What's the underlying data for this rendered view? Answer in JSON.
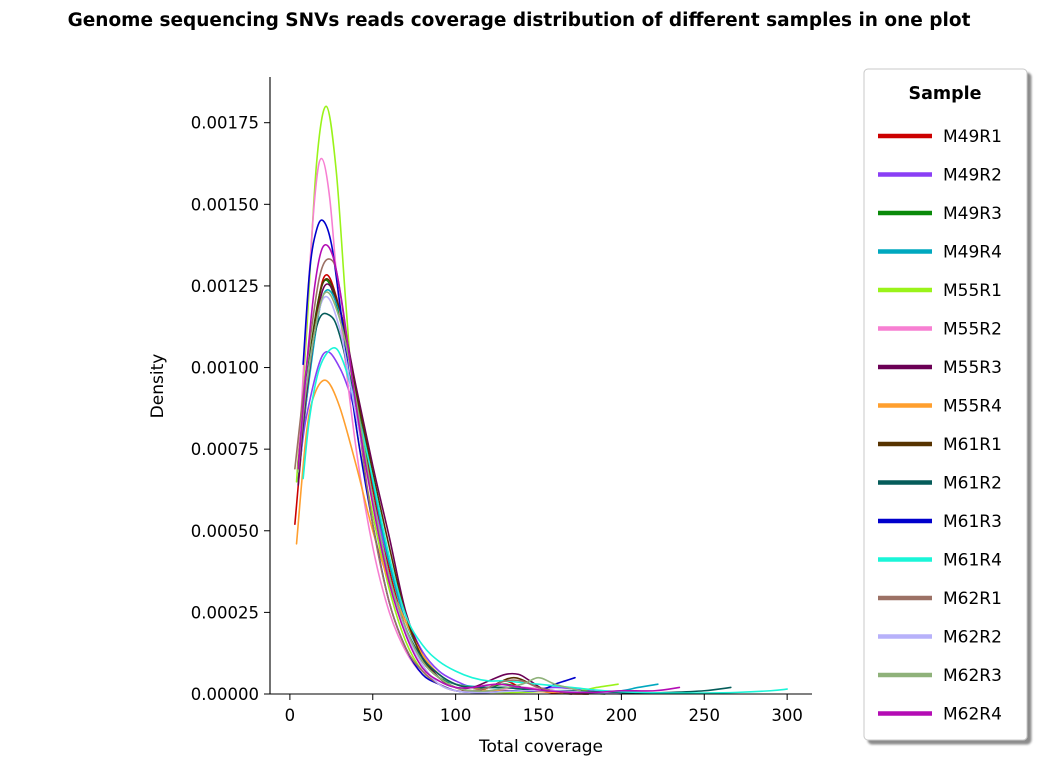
{
  "chart_data": {
    "type": "line",
    "title": "Genome sequencing SNVs reads coverage distribution of different samples in one plot",
    "xlabel": "Total coverage",
    "ylabel": "Density",
    "xlim": [
      -12,
      315
    ],
    "ylim": [
      0,
      0.00189
    ],
    "xticks": [
      0,
      50,
      100,
      150,
      200,
      250,
      300
    ],
    "yticks": [
      0.0,
      0.00025,
      0.0005,
      0.00075,
      0.001,
      0.00125,
      0.0015,
      0.00175
    ],
    "ytick_labels": [
      "0.00000",
      "0.00025",
      "0.00050",
      "0.00075",
      "0.00100",
      "0.00125",
      "0.00150",
      "0.00175"
    ],
    "grid": false,
    "legend": {
      "title": "Sample",
      "placement": "right-outside"
    },
    "series": [
      {
        "name": "M49R1",
        "color": "#cc0000",
        "x": [
          3,
          10,
          20,
          30,
          40,
          50,
          60,
          70,
          80,
          90,
          100,
          110,
          120,
          130,
          140,
          160,
          180
        ],
        "y": [
          0.00052,
          0.0009,
          0.00127,
          0.00118,
          0.00092,
          0.00063,
          0.00038,
          0.0002,
          0.0001,
          5e-05,
          2e-05,
          1e-05,
          2e-05,
          4e-05,
          2e-05,
          3e-06,
          0.0
        ]
      },
      {
        "name": "M49R2",
        "color": "#8a3ff5",
        "x": [
          5,
          10,
          20,
          30,
          40,
          50,
          60,
          70,
          80,
          90,
          100,
          110,
          120,
          140,
          160,
          180,
          200
        ],
        "y": [
          0.00066,
          0.00085,
          0.00104,
          0.001,
          0.00085,
          0.0006,
          0.0004,
          0.00024,
          0.00013,
          7e-05,
          4e-05,
          2e-05,
          1e-05,
          1e-05,
          2e-05,
          1e-05,
          0.0
        ]
      },
      {
        "name": "M49R3",
        "color": "#0a8a0a",
        "x": [
          5,
          10,
          20,
          30,
          40,
          50,
          60,
          70,
          80,
          90,
          100,
          110,
          120,
          130,
          150,
          170,
          190
        ],
        "y": [
          0.00068,
          0.00096,
          0.00126,
          0.00116,
          0.00092,
          0.0006,
          0.00036,
          0.00019,
          0.0001,
          5e-05,
          3e-05,
          2e-05,
          2e-05,
          3e-05,
          1e-05,
          5e-06,
          0.0
        ]
      },
      {
        "name": "M49R4",
        "color": "#00a8bf",
        "x": [
          5,
          10,
          20,
          30,
          40,
          50,
          60,
          70,
          80,
          90,
          100,
          120,
          140,
          160,
          180,
          200,
          210,
          222
        ],
        "y": [
          0.00065,
          0.0009,
          0.00122,
          0.00117,
          0.00093,
          0.00065,
          0.0004,
          0.00022,
          0.00012,
          6e-05,
          3e-05,
          2e-05,
          2e-05,
          1e-05,
          5e-06,
          1e-05,
          2e-05,
          3e-05
        ]
      },
      {
        "name": "M55R1",
        "color": "#9af31a",
        "x": [
          4,
          10,
          16,
          22,
          28,
          34,
          40,
          50,
          60,
          70,
          80,
          90,
          100,
          120,
          140,
          160,
          175,
          185,
          198
        ],
        "y": [
          0.00065,
          0.0011,
          0.00162,
          0.0018,
          0.0016,
          0.00118,
          0.00082,
          0.00055,
          0.00032,
          0.00016,
          7e-05,
          3e-05,
          1e-05,
          5e-06,
          5e-06,
          1e-05,
          1e-05,
          2e-05,
          3e-05
        ]
      },
      {
        "name": "M55R2",
        "color": "#f77fd2",
        "x": [
          5,
          10,
          15,
          19,
          24,
          30,
          40,
          50,
          60,
          70,
          80,
          90,
          100,
          120,
          140,
          160,
          180
        ],
        "y": [
          0.0007,
          0.00115,
          0.00152,
          0.00164,
          0.00152,
          0.00118,
          0.00075,
          0.00045,
          0.00025,
          0.00013,
          6e-05,
          3e-05,
          1e-05,
          1e-05,
          2e-05,
          1e-05,
          0.0
        ]
      },
      {
        "name": "M55R3",
        "color": "#6b0055",
        "x": [
          5,
          10,
          20,
          30,
          40,
          50,
          60,
          70,
          80,
          90,
          100,
          110,
          120,
          130,
          138,
          145,
          155,
          170
        ],
        "y": [
          0.00064,
          0.00092,
          0.00124,
          0.00118,
          0.00094,
          0.0007,
          0.00048,
          0.00025,
          0.00012,
          5e-05,
          2e-05,
          2e-05,
          4e-05,
          6e-05,
          6e-05,
          4e-05,
          1e-05,
          0.0
        ]
      },
      {
        "name": "M55R4",
        "color": "#ff9f2e",
        "x": [
          4,
          10,
          15,
          22,
          30,
          40,
          50,
          60,
          70,
          80,
          90,
          100,
          110,
          120,
          140,
          160,
          180
        ],
        "y": [
          0.00046,
          0.0008,
          0.00092,
          0.00096,
          0.00088,
          0.0007,
          0.0005,
          0.00034,
          0.00022,
          0.00012,
          6e-05,
          3e-05,
          2e-05,
          1e-05,
          1e-05,
          5e-06,
          0.0
        ]
      },
      {
        "name": "M61R1",
        "color": "#573300",
        "x": [
          5,
          10,
          20,
          30,
          40,
          50,
          60,
          70,
          80,
          90,
          100,
          110,
          120,
          135,
          150,
          165,
          180
        ],
        "y": [
          0.0007,
          0.00095,
          0.00126,
          0.00118,
          0.00092,
          0.00068,
          0.00045,
          0.00024,
          0.00011,
          5e-05,
          2e-05,
          1e-05,
          2e-05,
          5e-05,
          2e-05,
          5e-06,
          0.0
        ]
      },
      {
        "name": "M61R2",
        "color": "#055c5a",
        "x": [
          5,
          10,
          17,
          24,
          30,
          40,
          50,
          60,
          70,
          80,
          90,
          100,
          110,
          130,
          150,
          170,
          190,
          210,
          230,
          250,
          266
        ],
        "y": [
          0.00068,
          0.00095,
          0.00114,
          0.00116,
          0.0011,
          0.00088,
          0.0006,
          0.00036,
          0.0002,
          0.00011,
          6e-05,
          3e-05,
          2e-05,
          2e-05,
          1e-05,
          1e-05,
          5e-06,
          3e-06,
          5e-06,
          1e-05,
          2e-05
        ]
      },
      {
        "name": "M61R3",
        "color": "#0000cc",
        "x": [
          8,
          12,
          16,
          20,
          25,
          30,
          40,
          50,
          60,
          70,
          80,
          90,
          100,
          110,
          120,
          135,
          150,
          160,
          166,
          172
        ],
        "y": [
          0.00101,
          0.0013,
          0.00142,
          0.00145,
          0.00138,
          0.0012,
          0.00082,
          0.00052,
          0.00028,
          0.00014,
          6e-05,
          3e-05,
          1e-05,
          5e-06,
          5e-06,
          1e-05,
          1e-05,
          3e-05,
          4e-05,
          5e-05
        ]
      },
      {
        "name": "M61R4",
        "color": "#1af5d8",
        "x": [
          8,
          12,
          18,
          26,
          32,
          40,
          50,
          60,
          70,
          80,
          90,
          100,
          110,
          120,
          130,
          150,
          170,
          190,
          210,
          230,
          250,
          270,
          290,
          300
        ],
        "y": [
          0.00066,
          0.00085,
          0.001,
          0.00106,
          0.00102,
          0.00088,
          0.00066,
          0.00042,
          0.00024,
          0.00015,
          0.0001,
          7e-05,
          5e-05,
          4e-05,
          4e-05,
          3e-05,
          2e-05,
          1e-05,
          5e-06,
          3e-06,
          3e-06,
          5e-06,
          1e-05,
          1.5e-05
        ]
      },
      {
        "name": "M62R1",
        "color": "#9c7165",
        "x": [
          3,
          10,
          18,
          25,
          30,
          40,
          50,
          60,
          70,
          80,
          90,
          100,
          110,
          120,
          130,
          140,
          150,
          165,
          180
        ],
        "y": [
          0.00069,
          0.001,
          0.00128,
          0.00133,
          0.00124,
          0.00088,
          0.00052,
          0.00028,
          0.00014,
          7e-05,
          3e-05,
          1e-05,
          1e-05,
          2e-05,
          4e-05,
          4e-05,
          2e-05,
          5e-06,
          0.0
        ]
      },
      {
        "name": "M62R2",
        "color": "#b7b1fa",
        "x": [
          5,
          10,
          20,
          30,
          40,
          50,
          60,
          70,
          80,
          90,
          100,
          110,
          120,
          140,
          160,
          180,
          200
        ],
        "y": [
          0.00069,
          0.00095,
          0.00121,
          0.00112,
          0.00085,
          0.0006,
          0.00036,
          0.00019,
          9e-05,
          3e-05,
          1e-05,
          5e-06,
          5e-06,
          1e-05,
          1e-05,
          5e-06,
          0.0
        ]
      },
      {
        "name": "M62R3",
        "color": "#8fb27a",
        "x": [
          5,
          10,
          20,
          30,
          40,
          50,
          60,
          70,
          80,
          90,
          100,
          110,
          120,
          140,
          150,
          160,
          175
        ],
        "y": [
          0.00068,
          0.00094,
          0.00122,
          0.00115,
          0.0009,
          0.0006,
          0.00036,
          0.0002,
          0.0001,
          5e-05,
          2e-05,
          1e-05,
          1e-05,
          3e-05,
          5e-05,
          3e-05,
          1e-05
        ]
      },
      {
        "name": "M62R4",
        "color": "#b40cb4",
        "x": [
          5,
          10,
          15,
          20,
          26,
          32,
          40,
          50,
          60,
          70,
          80,
          90,
          100,
          110,
          125,
          140,
          155,
          170,
          185,
          200,
          220,
          235
        ],
        "y": [
          0.00069,
          0.001,
          0.00125,
          0.00137,
          0.00134,
          0.00118,
          0.00088,
          0.00058,
          0.00034,
          0.00018,
          8e-05,
          4e-05,
          2e-05,
          2e-05,
          3e-05,
          2e-05,
          1e-05,
          5e-06,
          5e-06,
          1e-05,
          1e-05,
          2e-05
        ]
      }
    ]
  }
}
